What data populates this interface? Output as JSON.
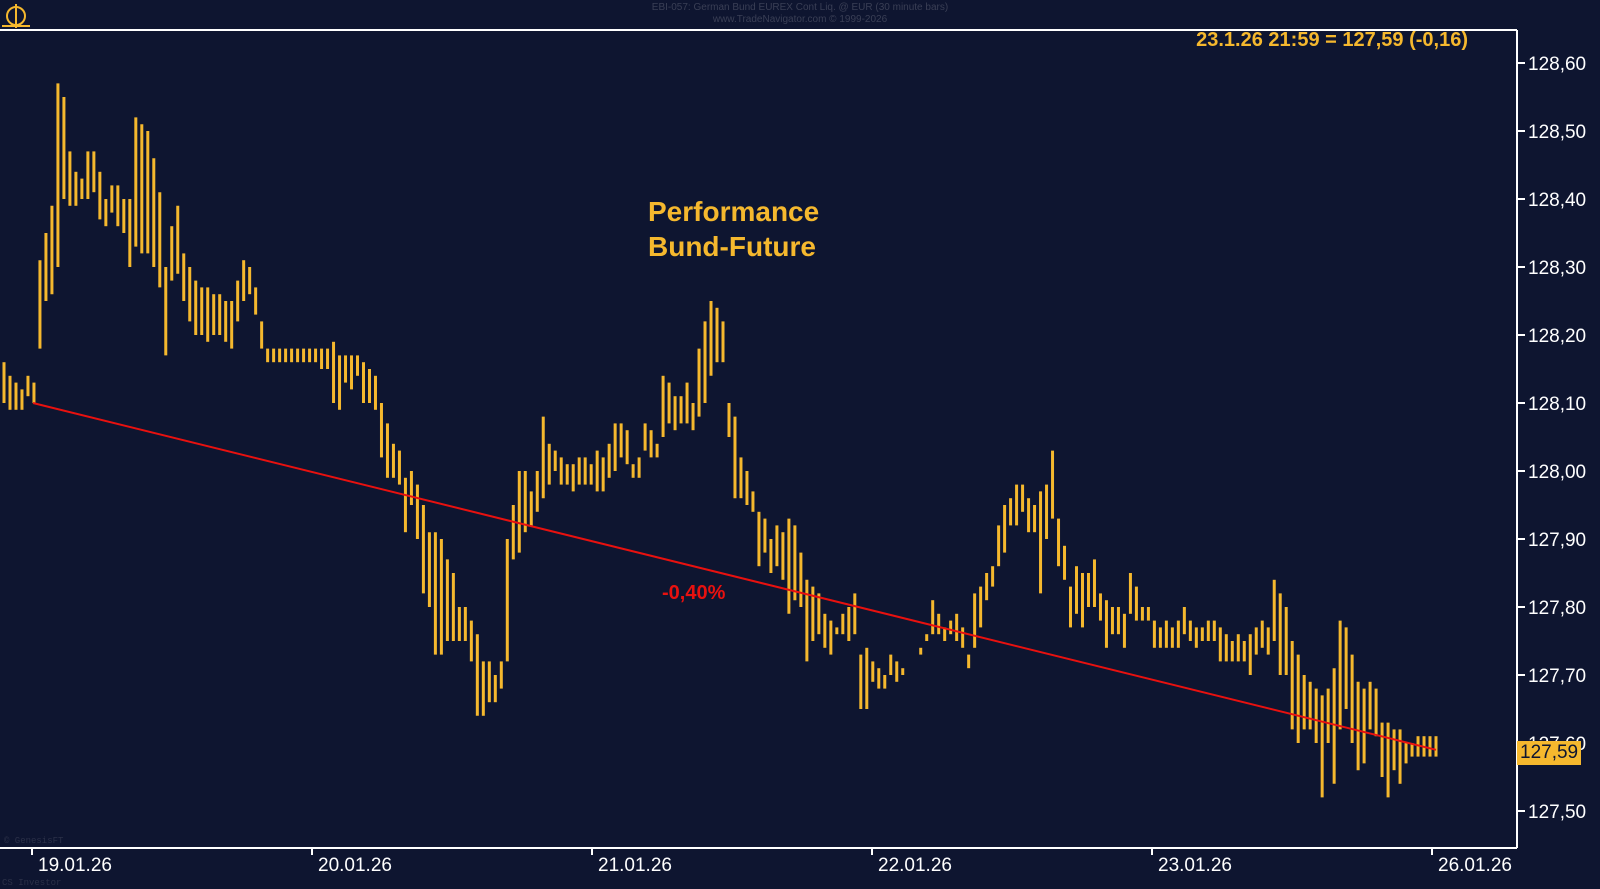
{
  "header": {
    "line1": "EBI-057: German Bund EUREX Cont Liq. @ EUR (30 minute bars)",
    "line2": "www.TradeNavigator.com © 1999-2026"
  },
  "last_info": "23.1.26 21:59 = 127,59 (-0,16)",
  "title_lines": [
    "Performance",
    "Bund-Future"
  ],
  "annotation": "-0,40%",
  "price_badge": "127,59",
  "footer": "CS Investor",
  "copyright": "© GenesisFT",
  "colors": {
    "background": "#0e1530",
    "bars": "#f5b82e",
    "trendline": "#e8110f",
    "axis": "#ffffff"
  },
  "chart_data": {
    "type": "ohlc",
    "title": "Performance Bund-Future",
    "x_ticks": [
      "19.01.26",
      "20.01.26",
      "21.01.26",
      "22.01.26",
      "23.01.26",
      "26.01.26"
    ],
    "y_ticks": [
      "127,50",
      "127,60",
      "127,70",
      "127,80",
      "127,90",
      "128,00",
      "128,10",
      "128,20",
      "128,30",
      "128,40",
      "128,50",
      "128,60"
    ],
    "ylim": [
      127.45,
      128.65
    ],
    "grid": false,
    "trendline": {
      "from": 128.1,
      "to": 127.59,
      "label": "-0,40%"
    },
    "bars_hl": [
      [
        128.16,
        128.1
      ],
      [
        128.14,
        128.09
      ],
      [
        128.13,
        128.09
      ],
      [
        128.12,
        128.09
      ],
      [
        128.14,
        128.11
      ],
      [
        128.13,
        128.1
      ],
      [
        128.31,
        128.18
      ],
      [
        128.35,
        128.25
      ],
      [
        128.39,
        128.26
      ],
      [
        128.57,
        128.3
      ],
      [
        128.55,
        128.4
      ],
      [
        128.47,
        128.39
      ],
      [
        128.44,
        128.39
      ],
      [
        128.43,
        128.4
      ],
      [
        128.47,
        128.4
      ],
      [
        128.47,
        128.41
      ],
      [
        128.44,
        128.37
      ],
      [
        128.4,
        128.36
      ],
      [
        128.42,
        128.38
      ],
      [
        128.42,
        128.36
      ],
      [
        128.4,
        128.35
      ],
      [
        128.4,
        128.3
      ],
      [
        128.52,
        128.33
      ],
      [
        128.51,
        128.32
      ],
      [
        128.5,
        128.32
      ],
      [
        128.46,
        128.3
      ],
      [
        128.41,
        128.27
      ],
      [
        128.3,
        128.17
      ],
      [
        128.36,
        128.28
      ],
      [
        128.39,
        128.29
      ],
      [
        128.32,
        128.25
      ],
      [
        128.3,
        128.22
      ],
      [
        128.28,
        128.2
      ],
      [
        128.27,
        128.2
      ],
      [
        128.27,
        128.19
      ],
      [
        128.26,
        128.2
      ],
      [
        128.26,
        128.2
      ],
      [
        128.25,
        128.19
      ],
      [
        128.25,
        128.18
      ],
      [
        128.28,
        128.22
      ],
      [
        128.31,
        128.25
      ],
      [
        128.3,
        128.26
      ],
      [
        128.27,
        128.23
      ],
      [
        128.22,
        128.18
      ],
      [
        128.18,
        128.16
      ],
      [
        128.18,
        128.16
      ],
      [
        128.18,
        128.16
      ],
      [
        128.18,
        128.16
      ],
      [
        128.18,
        128.16
      ],
      [
        128.18,
        128.16
      ],
      [
        128.18,
        128.16
      ],
      [
        128.18,
        128.16
      ],
      [
        128.18,
        128.16
      ],
      [
        128.18,
        128.15
      ],
      [
        128.18,
        128.15
      ],
      [
        128.19,
        128.1
      ],
      [
        128.17,
        128.09
      ],
      [
        128.17,
        128.13
      ],
      [
        128.17,
        128.12
      ],
      [
        128.17,
        128.14
      ],
      [
        128.16,
        128.1
      ],
      [
        128.15,
        128.1
      ],
      [
        128.14,
        128.09
      ],
      [
        128.1,
        128.02
      ],
      [
        128.07,
        127.99
      ],
      [
        128.04,
        127.99
      ],
      [
        128.03,
        127.98
      ],
      [
        127.99,
        127.91
      ],
      [
        128.0,
        127.95
      ],
      [
        127.98,
        127.9
      ],
      [
        127.95,
        127.82
      ],
      [
        127.91,
        127.8
      ],
      [
        127.91,
        127.73
      ],
      [
        127.9,
        127.73
      ],
      [
        127.87,
        127.75
      ],
      [
        127.85,
        127.75
      ],
      [
        127.8,
        127.75
      ],
      [
        127.8,
        127.75
      ],
      [
        127.78,
        127.72
      ],
      [
        127.76,
        127.64
      ],
      [
        127.72,
        127.64
      ],
      [
        127.72,
        127.66
      ],
      [
        127.7,
        127.66
      ],
      [
        127.72,
        127.68
      ],
      [
        127.9,
        127.72
      ],
      [
        127.95,
        127.87
      ],
      [
        128.0,
        127.88
      ],
      [
        128.0,
        127.91
      ],
      [
        127.97,
        127.92
      ],
      [
        128.0,
        127.94
      ],
      [
        128.08,
        127.96
      ],
      [
        128.04,
        127.98
      ],
      [
        128.03,
        128.0
      ],
      [
        128.02,
        127.98
      ],
      [
        128.01,
        127.98
      ],
      [
        128.01,
        127.97
      ],
      [
        128.02,
        127.98
      ],
      [
        128.02,
        127.98
      ],
      [
        128.01,
        127.98
      ],
      [
        128.03,
        127.97
      ],
      [
        128.02,
        127.97
      ],
      [
        128.04,
        127.99
      ],
      [
        128.07,
        128.0
      ],
      [
        128.07,
        128.02
      ],
      [
        128.06,
        128.01
      ],
      [
        128.01,
        127.99
      ],
      [
        128.02,
        127.99
      ],
      [
        128.07,
        128.03
      ],
      [
        128.06,
        128.02
      ],
      [
        128.04,
        128.02
      ],
      [
        128.14,
        128.05
      ],
      [
        128.13,
        128.07
      ],
      [
        128.11,
        128.06
      ],
      [
        128.11,
        128.07
      ],
      [
        128.13,
        128.07
      ],
      [
        128.1,
        128.06
      ],
      [
        128.18,
        128.08
      ],
      [
        128.22,
        128.1
      ],
      [
        128.25,
        128.14
      ],
      [
        128.24,
        128.16
      ],
      [
        128.22,
        128.16
      ],
      [
        128.1,
        128.05
      ],
      [
        128.08,
        127.96
      ],
      [
        128.02,
        127.96
      ],
      [
        128.0,
        127.95
      ],
      [
        127.97,
        127.94
      ],
      [
        127.94,
        127.86
      ],
      [
        127.93,
        127.88
      ],
      [
        127.9,
        127.85
      ],
      [
        127.92,
        127.86
      ],
      [
        127.91,
        127.84
      ],
      [
        127.93,
        127.79
      ],
      [
        127.92,
        127.81
      ],
      [
        127.88,
        127.8
      ],
      [
        127.84,
        127.72
      ],
      [
        127.83,
        127.75
      ],
      [
        127.82,
        127.76
      ],
      [
        127.79,
        127.74
      ],
      [
        127.78,
        127.73
      ],
      [
        127.77,
        127.76
      ],
      [
        127.79,
        127.76
      ],
      [
        127.8,
        127.75
      ],
      [
        127.82,
        127.76
      ],
      [
        127.73,
        127.65
      ],
      [
        127.74,
        127.65
      ],
      [
        127.72,
        127.69
      ],
      [
        127.71,
        127.68
      ],
      [
        127.7,
        127.68
      ],
      [
        127.73,
        127.7
      ],
      [
        127.72,
        127.69
      ],
      [
        127.71,
        127.7
      ],
      [
        127.7,
        127.7
      ],
      [
        127.72,
        127.72
      ],
      [
        127.74,
        127.73
      ],
      [
        127.76,
        127.75
      ],
      [
        127.81,
        127.76
      ],
      [
        127.79,
        127.76
      ],
      [
        127.77,
        127.75
      ],
      [
        127.78,
        127.76
      ],
      [
        127.79,
        127.75
      ],
      [
        127.77,
        127.74
      ],
      [
        127.73,
        127.71
      ],
      [
        127.82,
        127.74
      ],
      [
        127.83,
        127.77
      ],
      [
        127.85,
        127.81
      ],
      [
        127.86,
        127.83
      ],
      [
        127.92,
        127.86
      ],
      [
        127.95,
        127.88
      ],
      [
        127.96,
        127.92
      ],
      [
        127.98,
        127.92
      ],
      [
        127.98,
        127.94
      ],
      [
        127.96,
        127.91
      ],
      [
        127.95,
        127.91
      ],
      [
        127.97,
        127.82
      ],
      [
        127.98,
        127.9
      ],
      [
        128.03,
        127.93
      ],
      [
        127.93,
        127.86
      ],
      [
        127.89,
        127.84
      ],
      [
        127.83,
        127.77
      ],
      [
        127.86,
        127.79
      ],
      [
        127.85,
        127.77
      ],
      [
        127.85,
        127.8
      ],
      [
        127.87,
        127.8
      ],
      [
        127.82,
        127.78
      ],
      [
        127.81,
        127.74
      ],
      [
        127.8,
        127.76
      ],
      [
        127.8,
        127.76
      ],
      [
        127.79,
        127.74
      ],
      [
        127.85,
        127.79
      ],
      [
        127.83,
        127.78
      ],
      [
        127.8,
        127.78
      ],
      [
        127.8,
        127.78
      ],
      [
        127.78,
        127.74
      ],
      [
        127.77,
        127.74
      ],
      [
        127.78,
        127.74
      ],
      [
        127.77,
        127.74
      ],
      [
        127.78,
        127.74
      ],
      [
        127.8,
        127.76
      ],
      [
        127.78,
        127.75
      ],
      [
        127.77,
        127.74
      ],
      [
        127.77,
        127.75
      ],
      [
        127.78,
        127.75
      ],
      [
        127.78,
        127.75
      ],
      [
        127.77,
        127.72
      ],
      [
        127.76,
        127.72
      ],
      [
        127.75,
        127.72
      ],
      [
        127.76,
        127.72
      ],
      [
        127.75,
        127.72
      ],
      [
        127.76,
        127.7
      ],
      [
        127.77,
        127.73
      ],
      [
        127.78,
        127.74
      ],
      [
        127.77,
        127.73
      ],
      [
        127.84,
        127.75
      ],
      [
        127.82,
        127.7
      ],
      [
        127.8,
        127.7
      ],
      [
        127.75,
        127.62
      ],
      [
        127.73,
        127.6
      ],
      [
        127.7,
        127.62
      ],
      [
        127.69,
        127.62
      ],
      [
        127.68,
        127.6
      ],
      [
        127.67,
        127.52
      ],
      [
        127.68,
        127.6
      ],
      [
        127.71,
        127.54
      ],
      [
        127.78,
        127.62
      ],
      [
        127.77,
        127.65
      ],
      [
        127.73,
        127.6
      ],
      [
        127.69,
        127.56
      ],
      [
        127.68,
        127.57
      ],
      [
        127.69,
        127.62
      ],
      [
        127.68,
        127.61
      ],
      [
        127.63,
        127.55
      ],
      [
        127.63,
        127.52
      ],
      [
        127.62,
        127.56
      ],
      [
        127.62,
        127.54
      ],
      [
        127.6,
        127.57
      ],
      [
        127.6,
        127.58
      ],
      [
        127.61,
        127.58
      ],
      [
        127.61,
        127.58
      ],
      [
        127.61,
        127.58
      ],
      [
        127.61,
        127.58
      ]
    ]
  }
}
